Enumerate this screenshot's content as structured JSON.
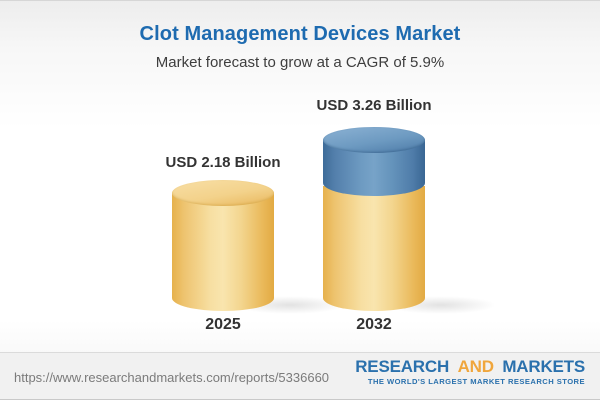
{
  "header": {
    "title": "Clot Management Devices Market",
    "subtitle": "Market forecast to grow at a CAGR of 5.9%"
  },
  "chart_data": {
    "type": "bar",
    "variant": "3d-cylinder",
    "categories": [
      "2025",
      "2032"
    ],
    "values": [
      2.18,
      3.26
    ],
    "value_labels": [
      "USD 2.18 Billion",
      "USD 3.26 Billion"
    ],
    "unit": "USD Billion",
    "cagr_percent": 5.9,
    "title": "Clot Management Devices Market",
    "subtitle": "Market forecast to grow at a CAGR of 5.9%",
    "xlabel": "",
    "ylabel": "",
    "grid": false,
    "legend": "none",
    "series_note": "2032 cylinder shows base value (yellow) plus growth segment of 1.08 (blue) stacked on top",
    "colors": {
      "base_segment": "#f0c870",
      "growth_segment": "#6796be",
      "label_text": "#333333"
    }
  },
  "footer": {
    "url": "https://www.researchandmarkets.com/reports/5336660",
    "logo": {
      "word1": "RESEARCH",
      "word2": "AND",
      "word3": "MARKETS",
      "tagline": "THE WORLD'S LARGEST MARKET RESEARCH STORE",
      "blue": "#2b71ad",
      "orange": "#f0a63c"
    }
  },
  "colors": {
    "title_blue": "#1e6bb0",
    "subtitle_gray": "#3e3e3e",
    "footer_bg": "#f1f1f1",
    "url_gray": "#7b7b7b"
  }
}
